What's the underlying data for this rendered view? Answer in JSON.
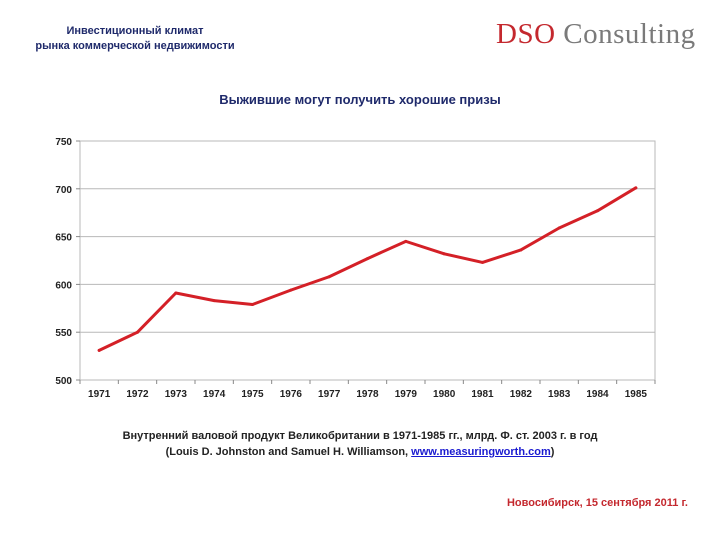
{
  "header": {
    "line1": "Инвестиционный климат",
    "line2": "рынка коммерческой недвижимости"
  },
  "logo": {
    "part1": "DSO",
    "part2": "Consulting"
  },
  "chart_data": {
    "type": "line",
    "title": "Выжившие могут получить хорошие призы",
    "xlabel": "",
    "ylabel": "",
    "categories": [
      "1971",
      "1972",
      "1973",
      "1974",
      "1975",
      "1976",
      "1977",
      "1978",
      "1979",
      "1980",
      "1981",
      "1982",
      "1983",
      "1984",
      "1985"
    ],
    "series": [
      {
        "values": [
          531,
          550,
          591,
          583,
          579,
          594,
          608,
          627,
          645,
          632,
          623,
          636,
          659,
          677,
          701
        ]
      }
    ],
    "ylim": [
      500,
      750
    ],
    "yticks": [
      500,
      550,
      600,
      650,
      700,
      750
    ],
    "grid": true,
    "line_color": "#d42027"
  },
  "caption": {
    "line1": "Внутренний валовой продукт Великобритании в 1971-1985 гг., млрд. Ф. ст. 2003 г. в год",
    "line2_prefix": "(Louis D. Johnston and Samuel H. Williamson, ",
    "link": "www.measuringworth.com",
    "line2_suffix": ")"
  },
  "footer": "Новосибирск, 15 сентября 2011 г."
}
